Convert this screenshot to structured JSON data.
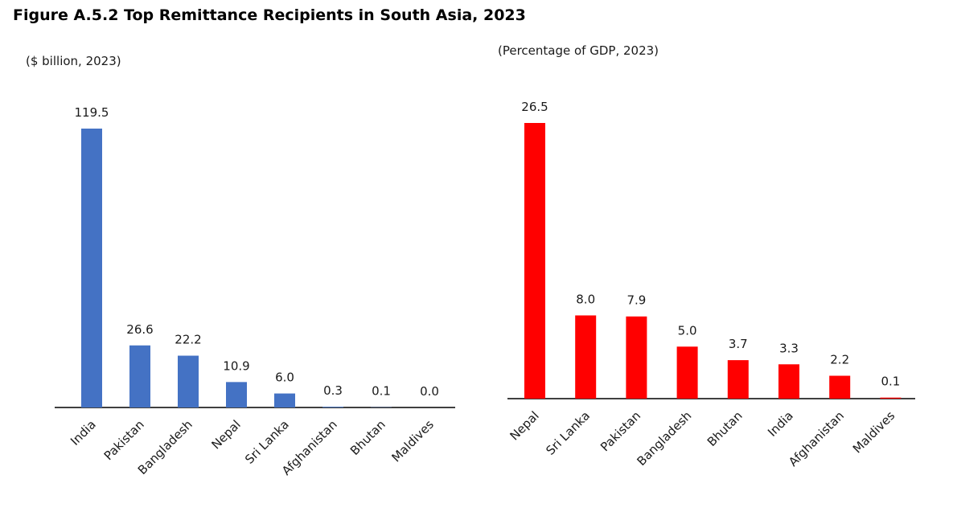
{
  "figure_title": "Figure A.5.2 Top Remittance Recipients in South Asia, 2023",
  "chart_data": [
    {
      "type": "bar",
      "subtitle": "($ billion, 2023)",
      "categories": [
        "India",
        "Pakistan",
        "Bangladesh",
        "Nepal",
        "Sri Lanka",
        "Afghanistan",
        "Bhutan",
        "Maldives"
      ],
      "values": [
        119.5,
        26.6,
        22.2,
        10.9,
        6.0,
        0.3,
        0.1,
        0.0
      ],
      "value_labels": [
        "119.5",
        "26.6",
        "22.2",
        "10.9",
        "6.0",
        "0.3",
        "0.1",
        "0.0"
      ],
      "color": "#4472C4",
      "ylim": [
        0,
        119.5
      ],
      "grid": false,
      "legend": "none"
    },
    {
      "type": "bar",
      "subtitle": "(Percentage of GDP, 2023)",
      "categories": [
        "Nepal",
        "Sri Lanka",
        "Pakistan",
        "Bangladesh",
        "Bhutan",
        "India",
        "Afghanistan",
        "Maldives"
      ],
      "values": [
        26.5,
        8.0,
        7.9,
        5.0,
        3.7,
        3.3,
        2.2,
        0.1
      ],
      "value_labels": [
        "26.5",
        "8.0",
        "7.9",
        "5.0",
        "3.7",
        "3.3",
        "2.2",
        "0.1"
      ],
      "color": "#FF0000",
      "ylim": [
        0,
        26.5
      ],
      "grid": false,
      "legend": "none"
    }
  ]
}
